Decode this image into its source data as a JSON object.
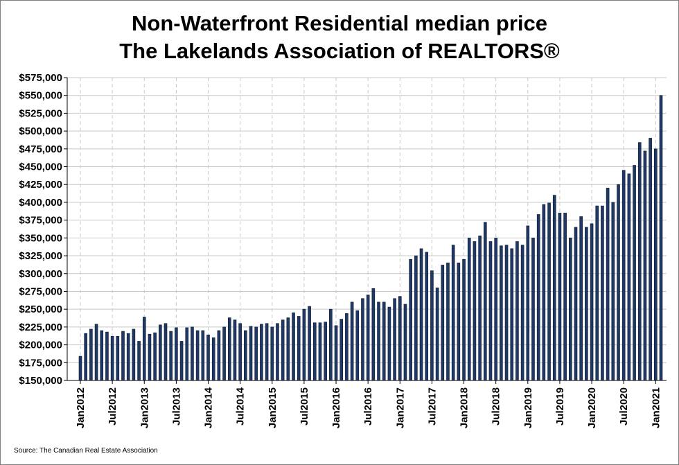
{
  "chart_data": {
    "type": "bar",
    "title_line1": "Non-Waterfront Residential median price",
    "title_line2": "The Lakelands Association of REALTORS®",
    "xlabel": "",
    "ylabel": "",
    "ylim": [
      150000,
      575000
    ],
    "grid": true,
    "y_ticks": [
      150000,
      175000,
      200000,
      225000,
      250000,
      275000,
      300000,
      325000,
      350000,
      375000,
      400000,
      425000,
      450000,
      475000,
      500000,
      525000,
      550000,
      575000
    ],
    "y_tick_labels": [
      "$150,000",
      "$175,000",
      "$200,000",
      "$225,000",
      "$250,000",
      "$275,000",
      "$300,000",
      "$325,000",
      "$350,000",
      "$375,000",
      "$400,000",
      "$425,000",
      "$450,000",
      "$475,000",
      "$500,000",
      "$525,000",
      "$550,000",
      "$575,000"
    ],
    "x_ticks": [
      {
        "index": 0,
        "label": "Jan2012"
      },
      {
        "index": 6,
        "label": "Jul2012"
      },
      {
        "index": 12,
        "label": "Jan2013"
      },
      {
        "index": 18,
        "label": "Jul2013"
      },
      {
        "index": 24,
        "label": "Jan2014"
      },
      {
        "index": 30,
        "label": "Jul2014"
      },
      {
        "index": 36,
        "label": "Jan2015"
      },
      {
        "index": 42,
        "label": "Jul2015"
      },
      {
        "index": 48,
        "label": "Jan2016"
      },
      {
        "index": 54,
        "label": "Jul2016"
      },
      {
        "index": 60,
        "label": "Jan2017"
      },
      {
        "index": 66,
        "label": "Jul2017"
      },
      {
        "index": 72,
        "label": "Jan2018"
      },
      {
        "index": 78,
        "label": "Jul2018"
      },
      {
        "index": 84,
        "label": "Jan2019"
      },
      {
        "index": 90,
        "label": "Jul2019"
      },
      {
        "index": 96,
        "label": "Jan2020"
      },
      {
        "index": 102,
        "label": "Jul2020"
      },
      {
        "index": 108,
        "label": "Jan2021"
      }
    ],
    "start_month": "Jan2012",
    "series": [
      {
        "values": [
          184000,
          216000,
          222000,
          229000,
          220000,
          218000,
          212000,
          212000,
          219000,
          216000,
          222000,
          205000,
          239000,
          215000,
          217000,
          228000,
          230000,
          219000,
          224000,
          205000,
          224000,
          225000,
          220000,
          220000,
          214000,
          210000,
          220000,
          225000,
          238000,
          235000,
          230000,
          220000,
          226000,
          225000,
          229000,
          230000,
          225000,
          230000,
          235000,
          238000,
          245000,
          240000,
          250000,
          254000,
          231000,
          231000,
          232000,
          250000,
          227000,
          236000,
          244000,
          260000,
          248000,
          265000,
          270000,
          279000,
          260000,
          260000,
          253000,
          265000,
          268000,
          257000,
          320000,
          325000,
          335000,
          330000,
          304000,
          280000,
          312000,
          315000,
          340000,
          315000,
          320000,
          350000,
          345000,
          353000,
          372000,
          345000,
          350000,
          339000,
          340000,
          335000,
          345000,
          340000,
          367000,
          350000,
          383000,
          397000,
          399000,
          410000,
          385000,
          385000,
          350000,
          365000,
          380000,
          365000,
          370000,
          395000,
          395000,
          420000,
          400000,
          425000,
          445000,
          440000,
          452000,
          484000,
          472000,
          490000,
          475000,
          550000
        ]
      }
    ],
    "bar_color": "#1f3864",
    "source": "Source: The Canadian Real Estate Association"
  }
}
